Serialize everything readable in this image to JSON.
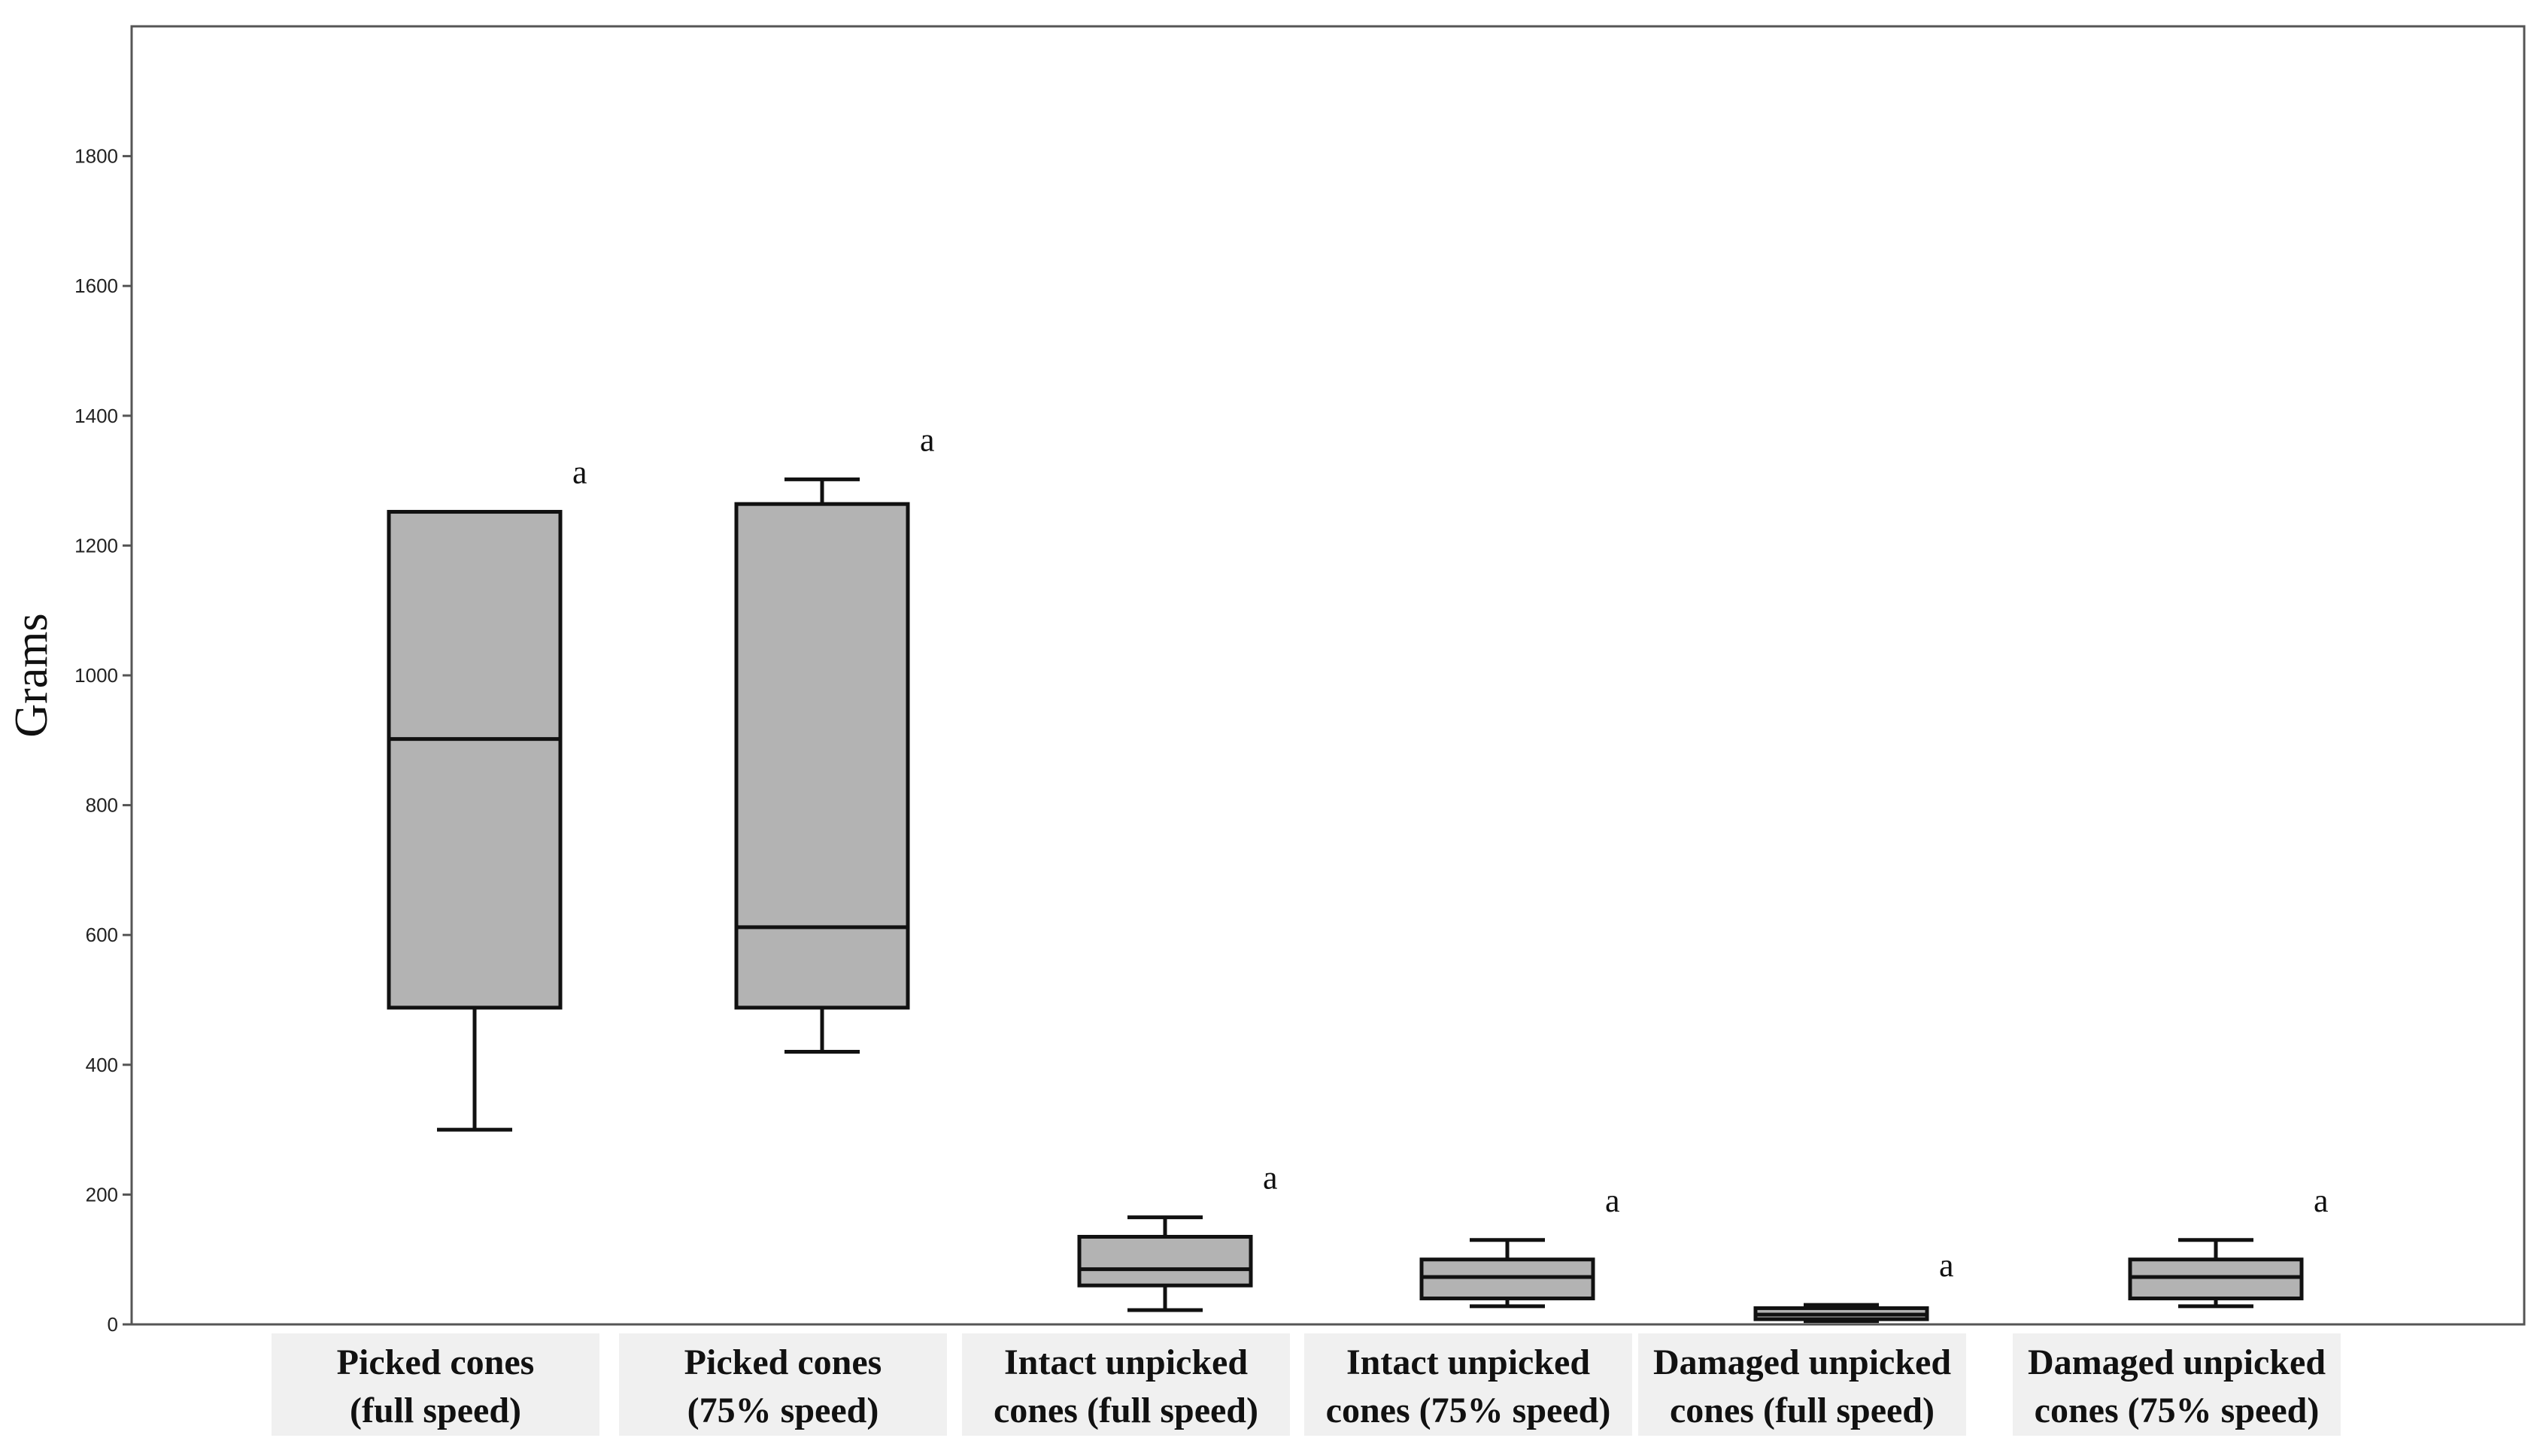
{
  "chart_data": {
    "type": "box",
    "title": "",
    "xlabel": "",
    "ylabel": "Grams",
    "ylim": [
      0,
      2000
    ],
    "yticks": [
      0,
      200,
      400,
      600,
      800,
      1000,
      1200,
      1400,
      1600,
      1800
    ],
    "grid": false,
    "colors": {
      "box_fill": "#b3b3b3",
      "stroke": "#111111",
      "label_bg": "#f0f0f0"
    },
    "categories": [
      {
        "line1": "Picked cones",
        "line2": "(full speed)"
      },
      {
        "line1": "Picked cones",
        "line2": "(75% speed)"
      },
      {
        "line1": "Intact unpicked",
        "line2": "cones (full speed)"
      },
      {
        "line1": "Intact unpicked",
        "line2": "cones (75% speed)"
      },
      {
        "line1": "Damaged unpicked",
        "line2": "cones (full speed)"
      },
      {
        "line1": "Damaged unpicked",
        "line2": "cones (75% speed)"
      }
    ],
    "boxes": [
      {
        "min": 300,
        "q1": 488,
        "median": 902,
        "q3": 1252,
        "max": 1252,
        "annotation": "a"
      },
      {
        "min": 420,
        "q1": 488,
        "median": 612,
        "q3": 1264,
        "max": 1302,
        "annotation": "a"
      },
      {
        "min": 22,
        "q1": 60,
        "median": 85,
        "q3": 135,
        "max": 165,
        "annotation": "a"
      },
      {
        "min": 28,
        "q1": 40,
        "median": 73,
        "q3": 100,
        "max": 130,
        "annotation": "a"
      },
      {
        "min": 5,
        "q1": 8,
        "median": 15,
        "q3": 25,
        "max": 30,
        "annotation": "a"
      },
      {
        "min": 28,
        "q1": 40,
        "median": 73,
        "q3": 100,
        "max": 130,
        "annotation": "a"
      }
    ]
  }
}
